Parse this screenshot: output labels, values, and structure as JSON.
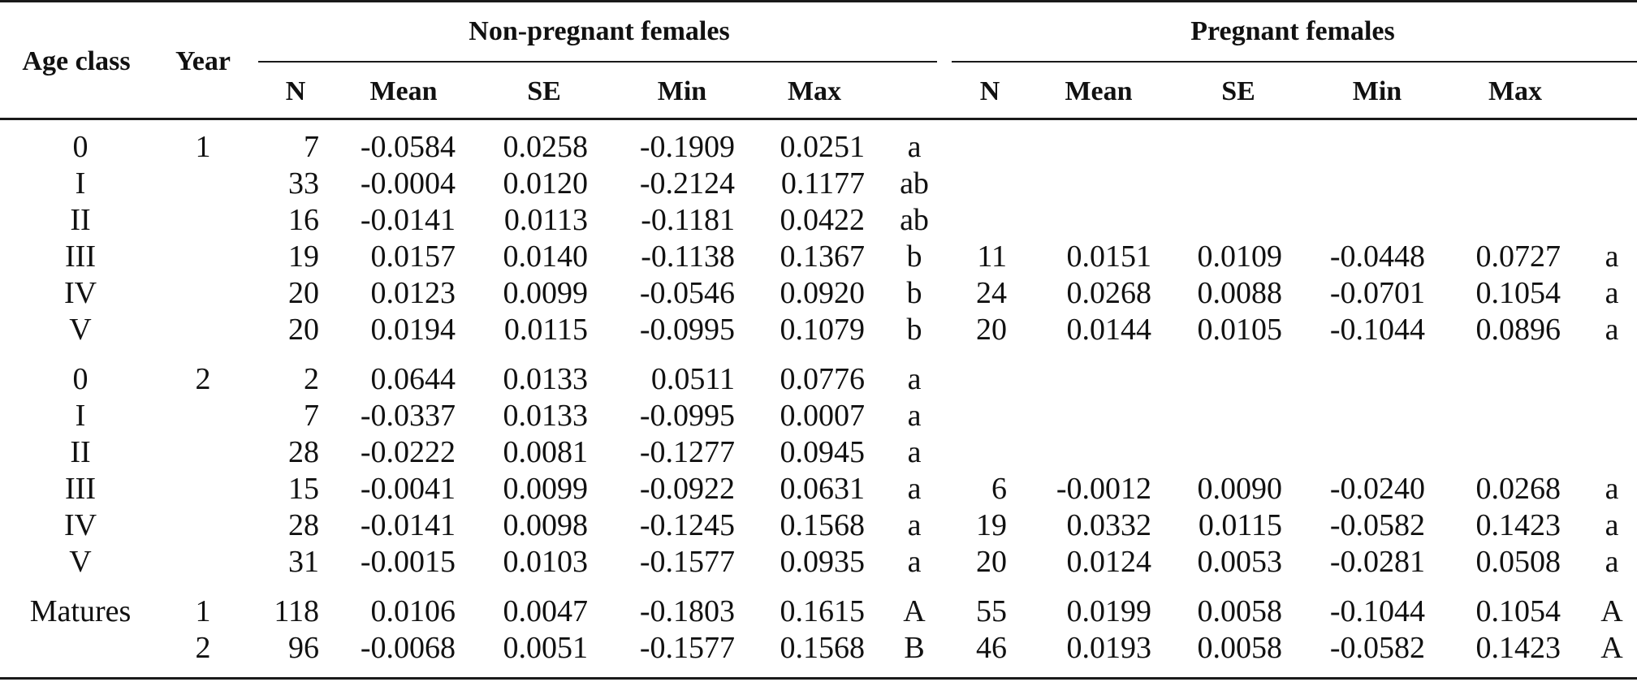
{
  "headers": {
    "age_class": "Age class",
    "year": "Year",
    "group_nonpregnant": "Non-pregnant females",
    "group_pregnant": "Pregnant females",
    "sub": [
      "N",
      "Mean",
      "SE",
      "Min",
      "Max"
    ]
  },
  "rows": [
    {
      "age": "0",
      "year": "1",
      "np": {
        "n": "7",
        "mean": "-0.0584",
        "se": "0.0258",
        "min": "-0.1909",
        "max": "0.0251",
        "sig": "a"
      },
      "p": null
    },
    {
      "age": "I",
      "year": "",
      "np": {
        "n": "33",
        "mean": "-0.0004",
        "se": "0.0120",
        "min": "-0.2124",
        "max": "0.1177",
        "sig": "ab"
      },
      "p": null
    },
    {
      "age": "II",
      "year": "",
      "np": {
        "n": "16",
        "mean": "-0.0141",
        "se": "0.0113",
        "min": "-0.1181",
        "max": "0.0422",
        "sig": "ab"
      },
      "p": null
    },
    {
      "age": "III",
      "year": "",
      "np": {
        "n": "19",
        "mean": "0.0157",
        "se": "0.0140",
        "min": "-0.1138",
        "max": "0.1367",
        "sig": "b"
      },
      "p": {
        "n": "11",
        "mean": "0.0151",
        "se": "0.0109",
        "min": "-0.0448",
        "max": "0.0727",
        "sig": "a"
      }
    },
    {
      "age": "IV",
      "year": "",
      "np": {
        "n": "20",
        "mean": "0.0123",
        "se": "0.0099",
        "min": "-0.0546",
        "max": "0.0920",
        "sig": "b"
      },
      "p": {
        "n": "24",
        "mean": "0.0268",
        "se": "0.0088",
        "min": "-0.0701",
        "max": "0.1054",
        "sig": "a"
      }
    },
    {
      "age": "V",
      "year": "",
      "np": {
        "n": "20",
        "mean": "0.0194",
        "se": "0.0115",
        "min": "-0.0995",
        "max": "0.1079",
        "sig": "b"
      },
      "p": {
        "n": "20",
        "mean": "0.0144",
        "se": "0.0105",
        "min": "-0.1044",
        "max": "0.0896",
        "sig": "a"
      }
    },
    {
      "age": "0",
      "year": "2",
      "np": {
        "n": "2",
        "mean": "0.0644",
        "se": "0.0133",
        "min": "0.0511",
        "max": "0.0776",
        "sig": "a"
      },
      "p": null
    },
    {
      "age": "I",
      "year": "",
      "np": {
        "n": "7",
        "mean": "-0.0337",
        "se": "0.0133",
        "min": "-0.0995",
        "max": "0.0007",
        "sig": "a"
      },
      "p": null
    },
    {
      "age": "II",
      "year": "",
      "np": {
        "n": "28",
        "mean": "-0.0222",
        "se": "0.0081",
        "min": "-0.1277",
        "max": "0.0945",
        "sig": "a"
      },
      "p": null
    },
    {
      "age": "III",
      "year": "",
      "np": {
        "n": "15",
        "mean": "-0.0041",
        "se": "0.0099",
        "min": "-0.0922",
        "max": "0.0631",
        "sig": "a"
      },
      "p": {
        "n": "6",
        "mean": "-0.0012",
        "se": "0.0090",
        "min": "-0.0240",
        "max": "0.0268",
        "sig": "a"
      }
    },
    {
      "age": "IV",
      "year": "",
      "np": {
        "n": "28",
        "mean": "-0.0141",
        "se": "0.0098",
        "min": "-0.1245",
        "max": "0.1568",
        "sig": "a"
      },
      "p": {
        "n": "19",
        "mean": "0.0332",
        "se": "0.0115",
        "min": "-0.0582",
        "max": "0.1423",
        "sig": "a"
      }
    },
    {
      "age": "V",
      "year": "",
      "np": {
        "n": "31",
        "mean": "-0.0015",
        "se": "0.0103",
        "min": "-0.1577",
        "max": "0.0935",
        "sig": "a"
      },
      "p": {
        "n": "20",
        "mean": "0.0124",
        "se": "0.0053",
        "min": "-0.0281",
        "max": "0.0508",
        "sig": "a"
      }
    },
    {
      "age": "Matures",
      "year": "1",
      "np": {
        "n": "118",
        "mean": "0.0106",
        "se": "0.0047",
        "min": "-0.1803",
        "max": "0.1615",
        "sig": "A"
      },
      "p": {
        "n": "55",
        "mean": "0.0199",
        "se": "0.0058",
        "min": "-0.1044",
        "max": "0.1054",
        "sig": "A"
      }
    },
    {
      "age": "",
      "year": "2",
      "np": {
        "n": "96",
        "mean": "-0.0068",
        "se": "0.0051",
        "min": "-0.1577",
        "max": "0.1568",
        "sig": "B"
      },
      "p": {
        "n": "46",
        "mean": "0.0193",
        "se": "0.0058",
        "min": "-0.0582",
        "max": "0.1423",
        "sig": "A"
      }
    }
  ]
}
